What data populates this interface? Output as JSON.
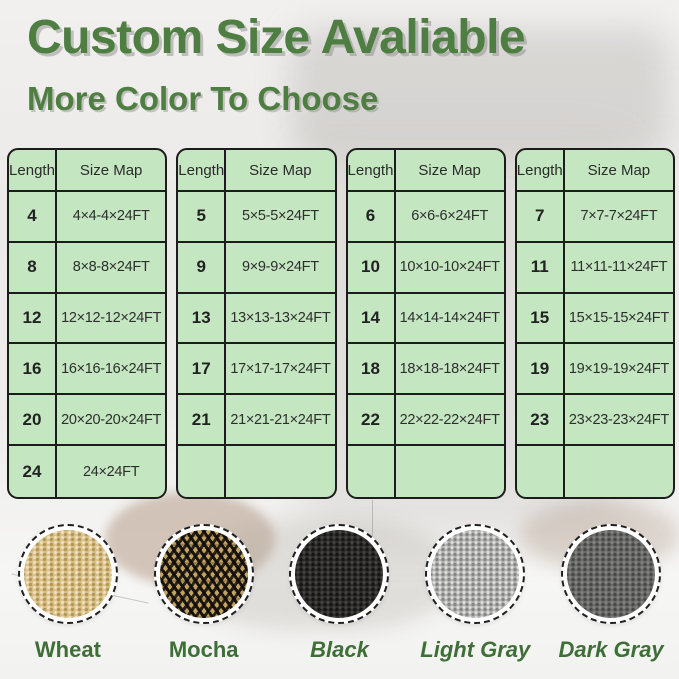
{
  "header": {
    "title": "Custom Size Avaliable",
    "subtitle": "More Color To Choose"
  },
  "size_tables": [
    {
      "headers": [
        "Length",
        "Size Map"
      ],
      "rows": [
        [
          "4",
          "4×4-4×24FT"
        ],
        [
          "8",
          "8×8-8×24FT"
        ],
        [
          "12",
          "12×12-12×24FT"
        ],
        [
          "16",
          "16×16-16×24FT"
        ],
        [
          "20",
          "20×20-20×24FT"
        ],
        [
          "24",
          "24×24FT"
        ]
      ]
    },
    {
      "headers": [
        "Length",
        "Size Map"
      ],
      "rows": [
        [
          "5",
          "5×5-5×24FT"
        ],
        [
          "9",
          "9×9-9×24FT"
        ],
        [
          "13",
          "13×13-13×24FT"
        ],
        [
          "17",
          "17×17-17×24FT"
        ],
        [
          "21",
          "21×21-21×24FT"
        ],
        [
          "",
          ""
        ]
      ]
    },
    {
      "headers": [
        "Length",
        "Size Map"
      ],
      "rows": [
        [
          "6",
          "6×6-6×24FT"
        ],
        [
          "10",
          "10×10-10×24FT"
        ],
        [
          "14",
          "14×14-14×24FT"
        ],
        [
          "18",
          "18×18-18×24FT"
        ],
        [
          "22",
          "22×22-22×24FT"
        ],
        [
          "",
          ""
        ]
      ]
    },
    {
      "headers": [
        "Length",
        "Size Map"
      ],
      "rows": [
        [
          "7",
          "7×7-7×24FT"
        ],
        [
          "11",
          "11×11-11×24FT"
        ],
        [
          "15",
          "15×15-15×24FT"
        ],
        [
          "19",
          "19×19-19×24FT"
        ],
        [
          "23",
          "23×23-23×24FT"
        ],
        [
          "",
          ""
        ]
      ]
    }
  ],
  "swatches": [
    {
      "label": "Wheat",
      "texture": "wheat",
      "base_color": "#dcc287",
      "label_style": "normal"
    },
    {
      "label": "Mocha",
      "texture": "mocha",
      "base_color": "#8a713f",
      "label_style": "normal"
    },
    {
      "label": "Black",
      "texture": "black",
      "base_color": "#2d2c2a",
      "label_style": "italic"
    },
    {
      "label": "Light Gray",
      "texture": "light-gray",
      "base_color": "#b5b5b3",
      "label_style": "italic"
    },
    {
      "label": "Dark Gray",
      "texture": "dark-gray",
      "base_color": "#6b6b69",
      "label_style": "italic"
    }
  ],
  "palette": {
    "title_green": "#4e7e41",
    "label_green": "#3e6f36",
    "table_fill": "#c4e7c1",
    "table_border": "#1c1c1c",
    "background": "#edecea"
  }
}
